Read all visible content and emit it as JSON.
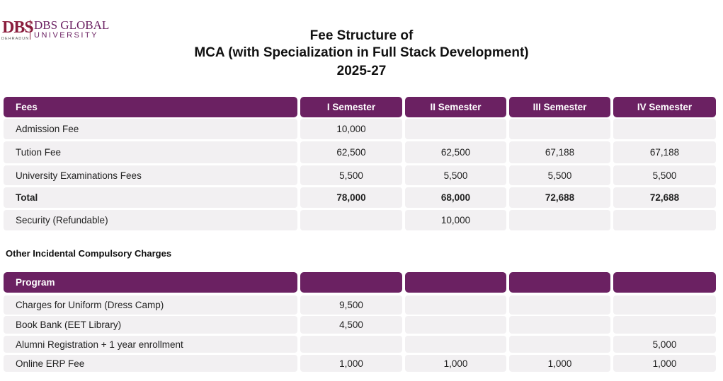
{
  "header": {
    "logo": {
      "mark": "DBS",
      "place": "DEHRADUN",
      "name": "DBS GLOBAL",
      "subname": "UNIVERSITY"
    },
    "title": [
      "Fee Structure of",
      "MCA (with Specialization in Full Stack Development)",
      "2025-27"
    ]
  },
  "fee_table": {
    "columns": [
      "Fees",
      "I Semester",
      "II Semester",
      "III Semester",
      "IV Semester"
    ],
    "rows": [
      [
        "Admission Fee",
        "10,000",
        null,
        null,
        null
      ],
      [
        "Tution Fee",
        "62,500",
        "62,500",
        "67,188",
        "67,188"
      ],
      [
        "University Examinations Fees",
        "5,500",
        "5,500",
        "5,500",
        "5,500"
      ],
      [
        "Total",
        "78,000",
        "68,000",
        "72,688",
        "72,688"
      ],
      [
        "Security (Refundable)",
        null,
        "10,000",
        null,
        null
      ]
    ]
  },
  "section_label": "Other Incidental Compulsory Charges",
  "charges_table": {
    "columns": [
      "Program",
      null,
      null,
      null,
      null
    ],
    "rows": [
      [
        "Charges for Uniform (Dress Camp)",
        "9,500",
        null,
        null,
        null
      ],
      [
        "Book Bank (EET Library)",
        "4,500",
        null,
        null,
        null
      ],
      [
        "Alumni Registration + 1 year enrollment",
        null,
        null,
        null,
        "5,000"
      ],
      [
        "Online ERP Fee",
        "1,000",
        "1,000",
        "1,000",
        "1,000"
      ]
    ]
  }
}
